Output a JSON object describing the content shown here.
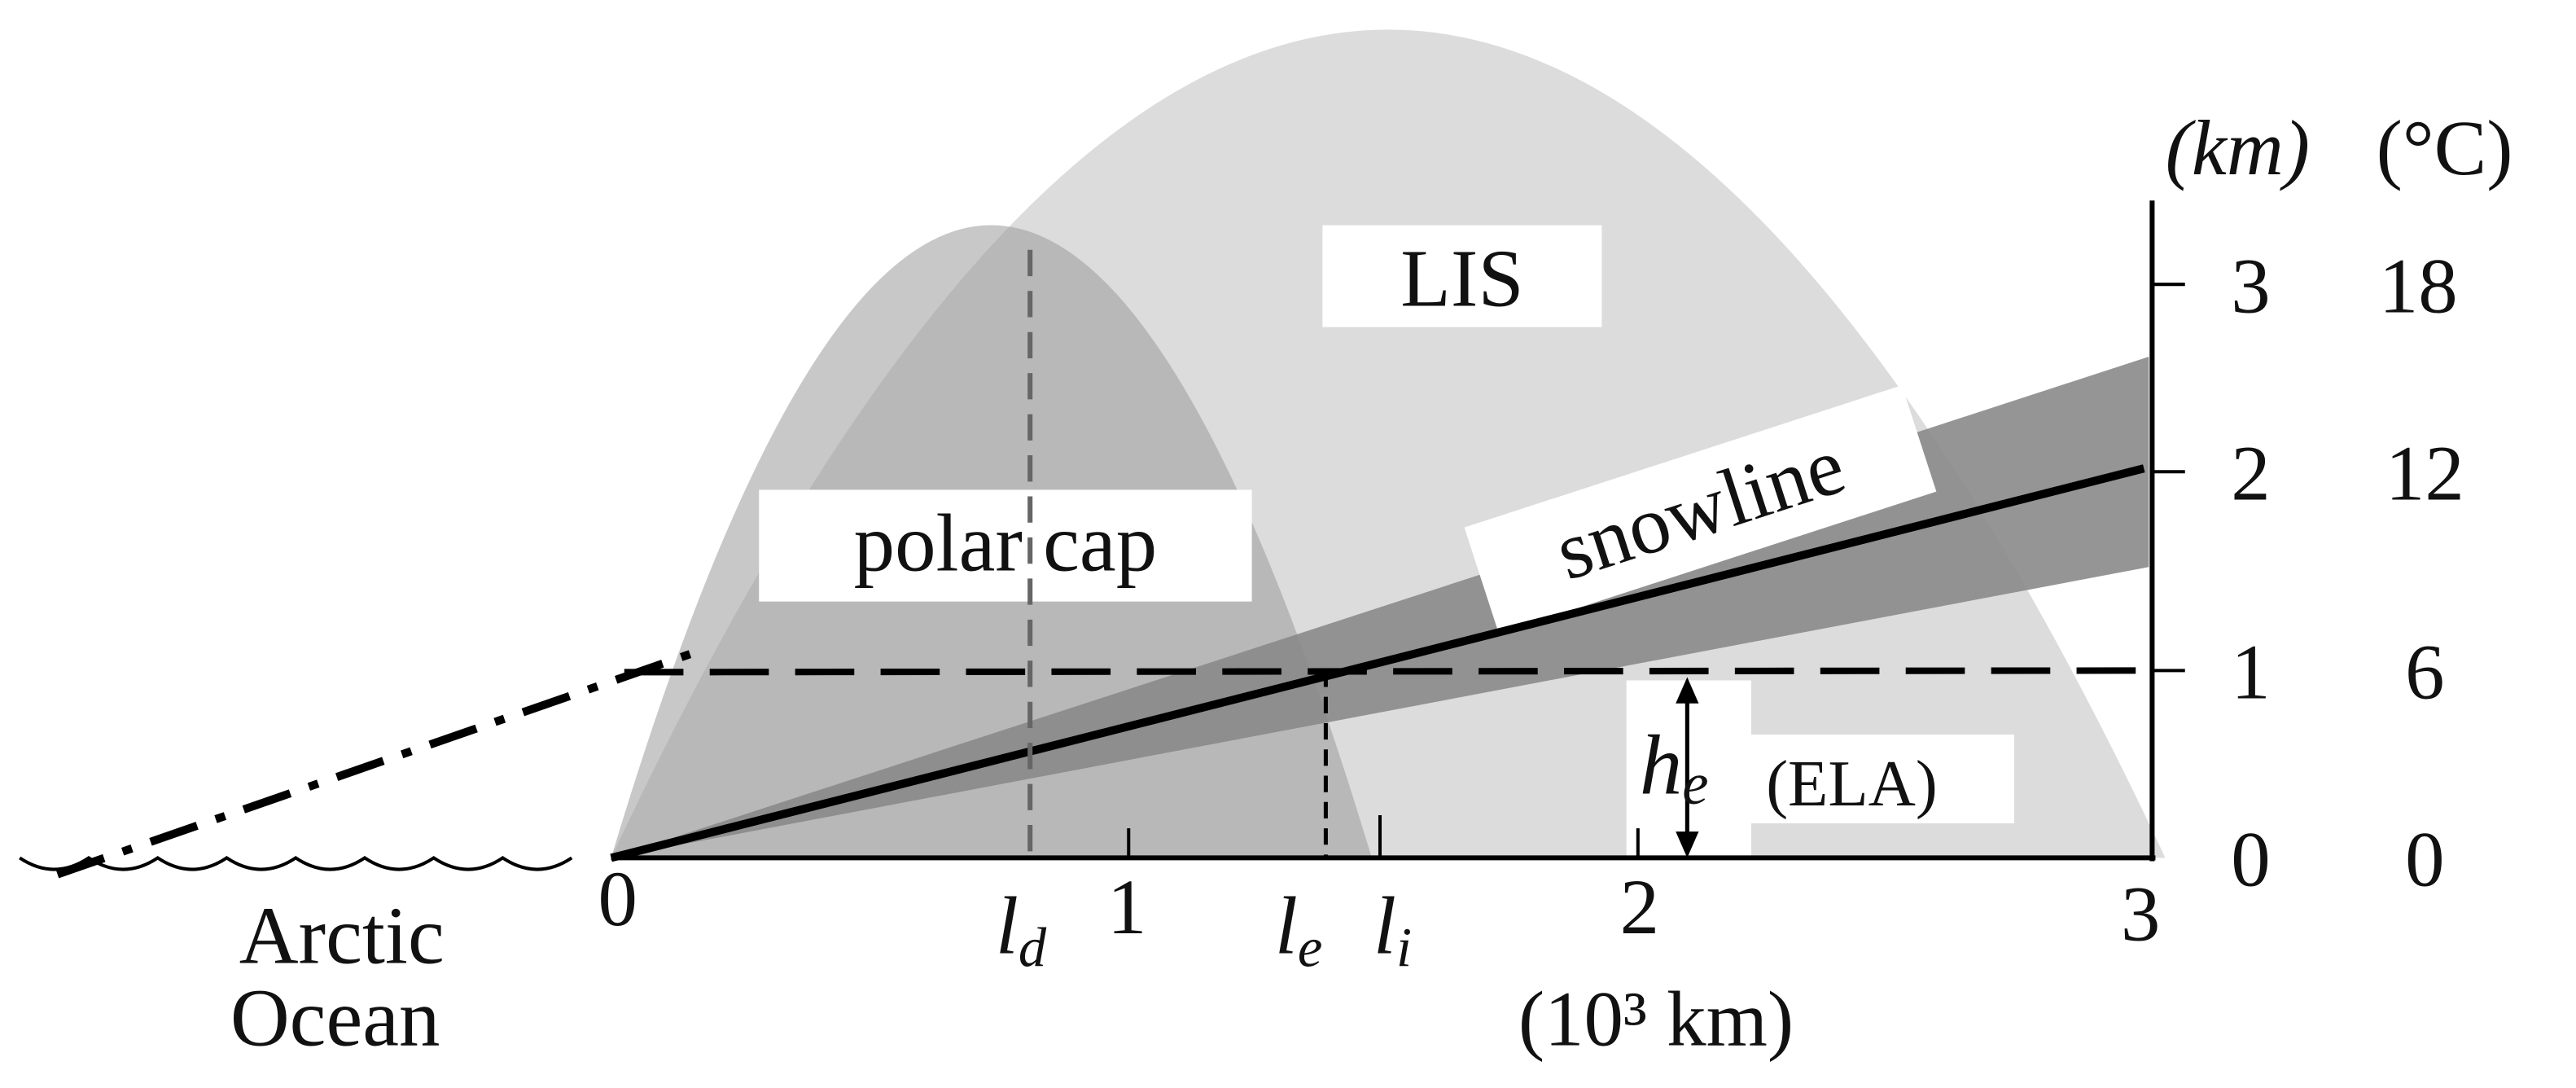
{
  "labels": {
    "lis": "LIS",
    "polar_cap": "polar cap",
    "snowline": "snowline",
    "arctic_ocean": [
      "Arctic",
      "Ocean"
    ],
    "ela": {
      "symbol": "h",
      "subscript": "e",
      "text": "(ELA)"
    }
  },
  "x_axis": {
    "ticks": [
      "0",
      "1",
      "2",
      "3"
    ],
    "unit": "(10³ km)",
    "markers": [
      {
        "symbol": "l",
        "subscript": "d"
      },
      {
        "symbol": "l",
        "subscript": "e"
      },
      {
        "symbol": "l",
        "subscript": "i"
      }
    ]
  },
  "y_axis": {
    "unit_km": "(km)",
    "unit_c": "(°C)",
    "ticks_km": [
      "3",
      "2",
      "1",
      "0"
    ],
    "ticks_c": [
      "18",
      "12",
      "6",
      "0"
    ]
  }
}
